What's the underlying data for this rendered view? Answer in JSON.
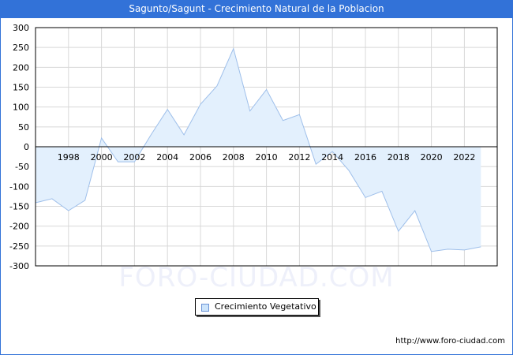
{
  "header": {
    "title": "Sagunto/Sagunt - Crecimiento Natural de la Poblacion"
  },
  "legend": {
    "items": [
      {
        "label": "Crecimiento Vegetativo",
        "color": "#cce4fb"
      }
    ]
  },
  "watermark": "FORO-CIUDAD.COM",
  "footer": {
    "source": "http://www.foro-ciudad.com"
  },
  "colors": {
    "title_bg": "#3272d8",
    "area_fill": "#e3f0fd",
    "line": "#9ebfea",
    "grid": "#d8d8d8"
  },
  "chart_data": {
    "type": "area",
    "title": "Sagunto/Sagunt - Crecimiento Natural de la Poblacion",
    "xlabel": "",
    "ylabel": "",
    "ylim": [
      -300,
      300
    ],
    "yticks": [
      300,
      250,
      200,
      150,
      100,
      50,
      0,
      -50,
      -100,
      -150,
      -200,
      -250,
      -300
    ],
    "xtick_labels": [
      "1998",
      "2000",
      "2002",
      "2004",
      "2006",
      "2008",
      "2010",
      "2012",
      "2014",
      "2016",
      "2018",
      "2020",
      "2022"
    ],
    "grid": true,
    "legend_position": "bottom",
    "x": [
      1996,
      1997,
      1998,
      1999,
      2000,
      2001,
      2002,
      2003,
      2004,
      2005,
      2006,
      2007,
      2008,
      2009,
      2010,
      2011,
      2012,
      2013,
      2014,
      2015,
      2016,
      2017,
      2018,
      2019,
      2020,
      2021,
      2022,
      2023
    ],
    "series": [
      {
        "name": "Crecimiento Vegetativo",
        "values": [
          -141,
          -131,
          -161,
          -135,
          22,
          -38,
          -38,
          30,
          94,
          30,
          107,
          153,
          247,
          90,
          144,
          66,
          81,
          -44,
          -12,
          -60,
          -128,
          -112,
          -213,
          -161,
          -264,
          -258,
          -260,
          -252
        ]
      }
    ]
  }
}
